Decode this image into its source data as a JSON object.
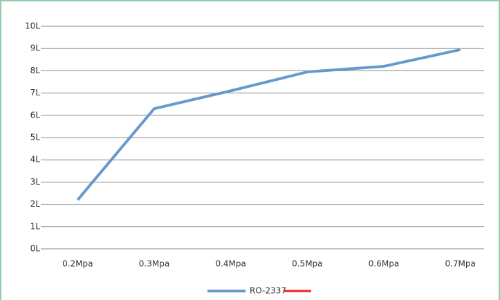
{
  "chart_data": {
    "type": "line",
    "categories": [
      "0.2Mpa",
      "0.3Mpa",
      "0.4Mpa",
      "0.5Mpa",
      "0.6Mpa",
      "0.7Mpa"
    ],
    "series": [
      {
        "name": "RO-2337",
        "color": "#6699cc",
        "values": [
          2.2,
          6.3,
          7.1,
          7.95,
          8.2,
          8.95
        ]
      }
    ],
    "ylim": [
      0,
      10
    ],
    "yticks": [
      {
        "value": 0,
        "label": "0L"
      },
      {
        "value": 1,
        "label": "1L"
      },
      {
        "value": 2,
        "label": "2L"
      },
      {
        "value": 3,
        "label": "3L"
      },
      {
        "value": 4,
        "label": "4L"
      },
      {
        "value": 5,
        "label": "5L"
      },
      {
        "value": 6,
        "label": "6L"
      },
      {
        "value": 7,
        "label": "7L"
      },
      {
        "value": 8,
        "label": "8L"
      },
      {
        "value": 9,
        "label": "9L"
      },
      {
        "value": 10,
        "label": "10L"
      }
    ],
    "grid": true,
    "legend": "bottom"
  }
}
